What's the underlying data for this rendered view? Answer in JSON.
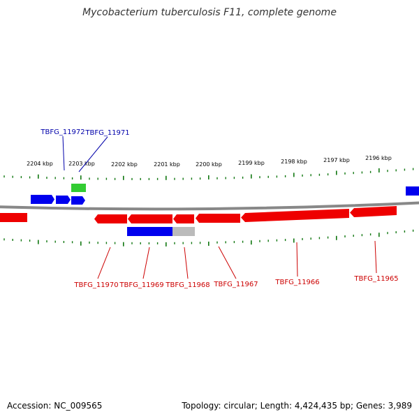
{
  "title": "Mycobacterium tuberculosis F11, complete genome",
  "accession_text": "Accession: NC_009565",
  "summary_text": "Topology: circular; Length: 4,424,435 bp; Genes: 3,989",
  "colors": {
    "forward_cds": "#0000ee",
    "reverse_cds": "#ee0000",
    "rna": "#33cc33",
    "pseudo": "#bbbbbb",
    "backbone": "#888888",
    "ticks": "#117711",
    "label_forward": "#0000aa",
    "label_reverse": "#cc0000"
  },
  "kbp_labels": [
    "2204 kbp",
    "2203 kbp",
    "2202 kbp",
    "2201 kbp",
    "2200 kbp",
    "2199 kbp",
    "2198 kbp",
    "2197 kbp",
    "2196 kbp"
  ],
  "gene_labels_top": [
    "TBFG_11972",
    "TBFG_11971"
  ],
  "gene_labels_bottom": [
    "TBFG_11970",
    "TBFG_11969",
    "TBFG_11968",
    "TBFG_11967",
    "TBFG_11966",
    "TBFG_11965"
  ]
}
